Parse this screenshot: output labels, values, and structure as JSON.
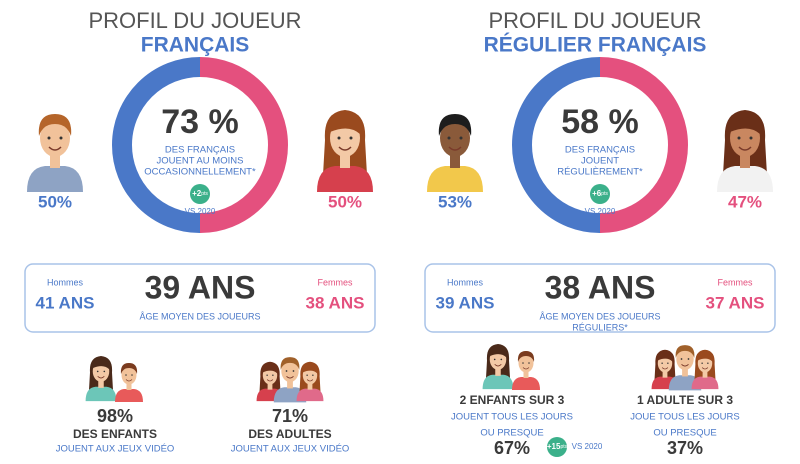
{
  "panels": [
    {
      "title": "PROFIL DU JOUEUR",
      "subtitle": "FRANÇAIS",
      "donut": {
        "value": "73 %",
        "text": [
          "DES FRANÇAIS",
          "JOUENT AU MOINS",
          "OCCASIONNELLEMENT*"
        ],
        "badge": {
          "value": "+2",
          "unit": "pts"
        },
        "badge_note": "VS 2020"
      },
      "men_share": "50%",
      "women_share": "50%",
      "age": {
        "men_label": "Hommes",
        "men_value": "41 ANS",
        "average": "39 ANS",
        "caption": [
          "ÂGE MOYEN DES JOUEURS"
        ],
        "women_label": "Femmes",
        "women_value": "38 ANS"
      },
      "groups": [
        {
          "lines": [
            {
              "text": "98%",
              "kind": "pct"
            },
            {
              "text": "DES ENFANTS",
              "kind": "bold"
            },
            {
              "text": "JOUENT AUX JEUX VIDÉO",
              "kind": "blue"
            }
          ]
        },
        {
          "lines": [
            {
              "text": "71%",
              "kind": "pct"
            },
            {
              "text": "DES ADULTES",
              "kind": "bold"
            },
            {
              "text": "JOUENT AUX JEUX VIDÉO",
              "kind": "blue"
            }
          ]
        }
      ]
    },
    {
      "title": "PROFIL DU JOUEUR",
      "subtitle": "RÉGULIER FRANÇAIS",
      "donut": {
        "value": "58 %",
        "text": [
          "DES FRANÇAIS",
          "JOUENT",
          "RÉGULIÈREMENT*"
        ],
        "badge": {
          "value": "+6",
          "unit": "pts"
        },
        "badge_note": "VS 2020"
      },
      "men_share": "53%",
      "women_share": "47%",
      "age": {
        "men_label": "Hommes",
        "men_value": "39 ANS",
        "average": "38 ANS",
        "caption": [
          "ÂGE MOYEN DES JOUEURS",
          "RÉGULIERS*"
        ],
        "women_label": "Femmes",
        "women_value": "37 ANS"
      },
      "groups": [
        {
          "lines": [
            {
              "text": "2 ENFANTS SUR 3",
              "kind": "bold"
            },
            {
              "text": "JOUENT TOUS LES JOURS",
              "kind": "blue"
            },
            {
              "text": "OU PRESQUE",
              "kind": "blue"
            },
            {
              "text": "67%",
              "kind": "pct"
            }
          ],
          "badge": {
            "value": "+15",
            "unit": "pts"
          },
          "badge_note": "VS 2020"
        },
        {
          "lines": [
            {
              "text": "1 ADULTE SUR 3",
              "kind": "bold"
            },
            {
              "text": "JOUE TOUS LES JOURS",
              "kind": "blue"
            },
            {
              "text": "OU PRESQUE",
              "kind": "blue"
            },
            {
              "text": "37%",
              "kind": "pct"
            }
          ]
        }
      ]
    }
  ]
}
